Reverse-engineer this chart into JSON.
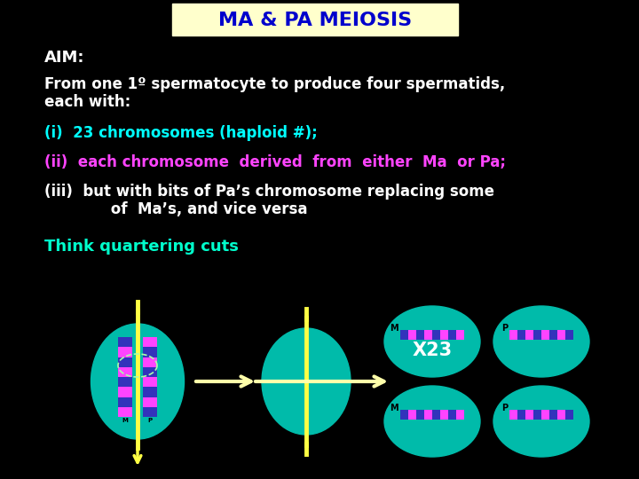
{
  "bg_color": "#000000",
  "title_text": "MA & PA MEIOSIS",
  "title_bg": "#ffffcc",
  "title_color": "#0000cc",
  "aim_text": "AIM:",
  "aim_color": "#ffffff",
  "line1_text": "From one 1º spermatocyte to produce four spermatids,",
  "line1b_text": "each with:",
  "line1_color": "#ffffff",
  "point_i_text": "(i)  23 chromosomes (haploid #);",
  "point_i_color": "#00ffff",
  "point_ii_text": "(ii)  each chromosome  derived  from  either  Ma  or Pa;",
  "point_ii_color": "#ff44ff",
  "point_iii_text": "(iii)  but with bits of Pa’s chromosome replacing some",
  "point_iii_b_text": "             of  Ma’s, and vice versa",
  "point_iii_color": "#ffffff",
  "think_text": "Think quartering cuts",
  "think_color": "#00ffcc",
  "cell_color": "#00bbaa",
  "chrom_blue": "#3333bb",
  "chrom_pink": "#ff44ff",
  "cut_color": "#ffff44",
  "x23_color": "#ffffff",
  "arrow_color": "#ffffaa",
  "fig_w": 7.2,
  "fig_h": 5.4,
  "dpi": 100
}
